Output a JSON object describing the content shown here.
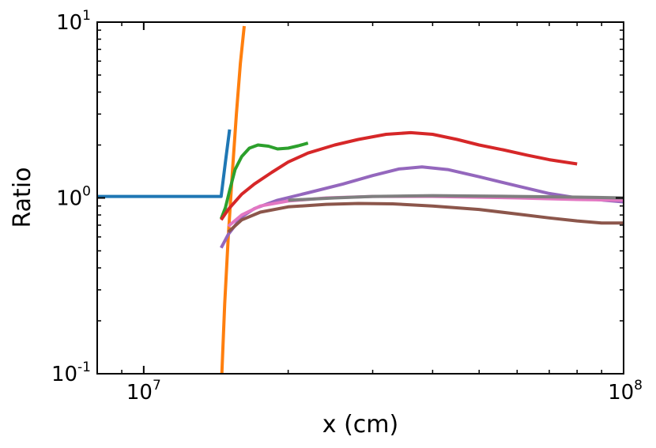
{
  "chart_data": {
    "type": "line",
    "title": "",
    "xlabel": "x (cm)",
    "ylabel": "Ratio",
    "x_scale": "log",
    "y_scale": "log",
    "xlim": [
      8000000,
      100000000
    ],
    "ylim": [
      0.1,
      10
    ],
    "x_ticks": [
      {
        "value": 10000000,
        "base": "10",
        "exp": "7"
      },
      {
        "value": 100000000,
        "base": "10",
        "exp": "8"
      }
    ],
    "y_ticks": [
      {
        "value": 0.1,
        "base": "10",
        "exp": "-1"
      },
      {
        "value": 1,
        "base": "10",
        "exp": "0"
      },
      {
        "value": 10,
        "base": "10",
        "exp": "1"
      }
    ],
    "grid": false,
    "legend": "none",
    "series": [
      {
        "color": "#1f77b4",
        "points": [
          [
            8000000,
            1.02
          ],
          [
            14500000,
            1.02
          ],
          [
            14800000,
            1.6
          ],
          [
            15100000,
            2.45
          ]
        ]
      },
      {
        "color": "#ff7f0e",
        "points": [
          [
            14550000,
            0.1
          ],
          [
            14750000,
            0.25
          ],
          [
            15000000,
            0.6
          ],
          [
            15300000,
            1.4
          ],
          [
            15600000,
            3.0
          ],
          [
            15900000,
            5.8
          ],
          [
            16200000,
            9.5
          ]
        ]
      },
      {
        "color": "#2ca02c",
        "points": [
          [
            14500000,
            0.76
          ],
          [
            14800000,
            0.88
          ],
          [
            15100000,
            1.1
          ],
          [
            15500000,
            1.45
          ],
          [
            16000000,
            1.72
          ],
          [
            16600000,
            1.92
          ],
          [
            17300000,
            2.0
          ],
          [
            18200000,
            1.97
          ],
          [
            19000000,
            1.9
          ],
          [
            20000000,
            1.92
          ],
          [
            21000000,
            1.98
          ],
          [
            22000000,
            2.05
          ]
        ]
      },
      {
        "color": "#d62728",
        "points": [
          [
            14500000,
            0.75
          ],
          [
            15000000,
            0.86
          ],
          [
            16000000,
            1.05
          ],
          [
            17000000,
            1.2
          ],
          [
            18500000,
            1.4
          ],
          [
            20000000,
            1.6
          ],
          [
            22000000,
            1.8
          ],
          [
            25000000,
            2.0
          ],
          [
            28000000,
            2.15
          ],
          [
            32000000,
            2.3
          ],
          [
            36000000,
            2.35
          ],
          [
            40000000,
            2.3
          ],
          [
            45000000,
            2.15
          ],
          [
            50000000,
            2.0
          ],
          [
            56000000,
            1.88
          ],
          [
            63000000,
            1.75
          ],
          [
            70000000,
            1.65
          ],
          [
            80000000,
            1.56
          ]
        ]
      },
      {
        "color": "#9467bd",
        "points": [
          [
            14500000,
            0.52
          ],
          [
            15000000,
            0.62
          ],
          [
            16000000,
            0.78
          ],
          [
            17000000,
            0.87
          ],
          [
            19000000,
            0.97
          ],
          [
            22000000,
            1.07
          ],
          [
            26000000,
            1.2
          ],
          [
            30000000,
            1.34
          ],
          [
            34000000,
            1.46
          ],
          [
            38000000,
            1.5
          ],
          [
            43000000,
            1.45
          ],
          [
            50000000,
            1.32
          ],
          [
            60000000,
            1.17
          ],
          [
            70000000,
            1.06
          ],
          [
            80000000,
            1.0
          ],
          [
            100000000,
            0.95
          ]
        ]
      },
      {
        "color": "#8c564b",
        "points": [
          [
            15000000,
            0.64
          ],
          [
            16000000,
            0.75
          ],
          [
            17500000,
            0.83
          ],
          [
            20000000,
            0.89
          ],
          [
            24000000,
            0.92
          ],
          [
            28000000,
            0.93
          ],
          [
            33000000,
            0.925
          ],
          [
            40000000,
            0.9
          ],
          [
            50000000,
            0.86
          ],
          [
            60000000,
            0.81
          ],
          [
            70000000,
            0.77
          ],
          [
            80000000,
            0.74
          ],
          [
            90000000,
            0.72
          ],
          [
            100000000,
            0.72
          ]
        ]
      },
      {
        "color": "#e377c2",
        "points": [
          [
            15000000,
            0.69
          ],
          [
            16000000,
            0.8
          ],
          [
            17500000,
            0.9
          ],
          [
            20000000,
            0.96
          ],
          [
            24000000,
            1.0
          ],
          [
            30000000,
            1.02
          ],
          [
            40000000,
            1.02
          ],
          [
            60000000,
            1.0
          ],
          [
            80000000,
            0.98
          ],
          [
            100000000,
            0.97
          ]
        ]
      },
      {
        "color": "#7f7f7f",
        "points": [
          [
            20000000,
            0.97
          ],
          [
            25000000,
            1.0
          ],
          [
            30000000,
            1.02
          ],
          [
            40000000,
            1.03
          ],
          [
            60000000,
            1.02
          ],
          [
            80000000,
            1.01
          ],
          [
            100000000,
            1.0
          ]
        ]
      }
    ]
  }
}
